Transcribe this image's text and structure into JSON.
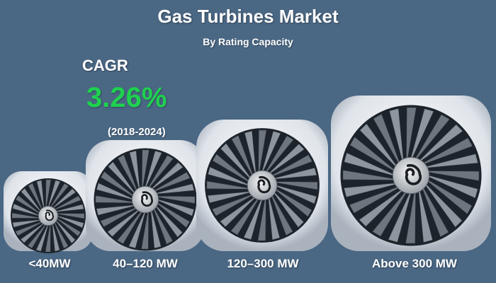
{
  "chart_data": {
    "type": "infographic",
    "title": "Gas Turbines Market",
    "subtitle": "By Rating Capacity",
    "categories": [
      "<40MW",
      "40–120 MW",
      "120–300 MW",
      "Above 300 MW"
    ],
    "cagr": {
      "label": "CAGR",
      "value": "3.26%",
      "period": "(2018-2024)"
    },
    "colors": {
      "background": "#4a6784",
      "cagr_value": "#1fd14f",
      "text": "#ffffff"
    },
    "icon": "jet-engine-turbine-icon"
  }
}
